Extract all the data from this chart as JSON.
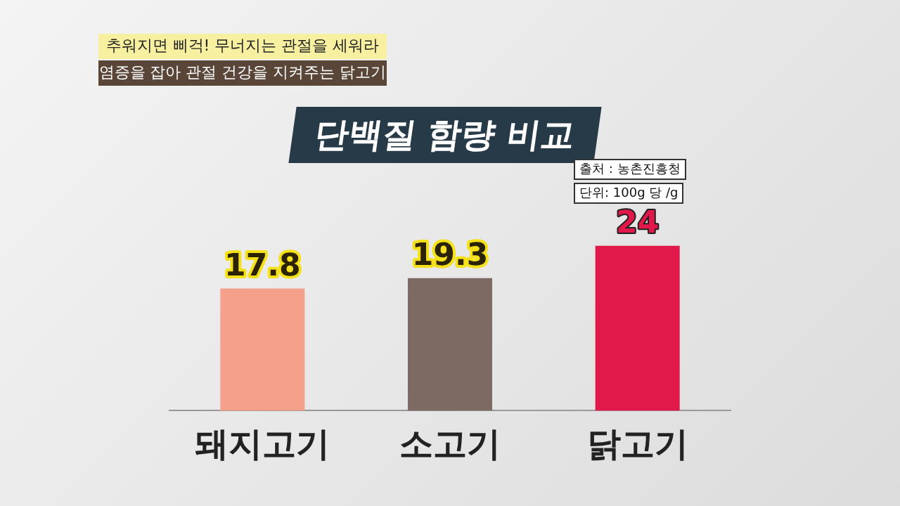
{
  "chart_data": {
    "type": "bar",
    "title": "단백질 함량 비교",
    "categories": [
      "돼지고기",
      "소고기",
      "닭고기"
    ],
    "values": [
      17.8,
      19.3,
      24
    ],
    "colors": [
      "#f4a08a",
      "#7d6a62",
      "#e0194a"
    ],
    "data_labels": true,
    "annotations": [
      "추워지면 삐걱! 무너지는 관절을 세워라",
      "염증을 잡아 관절 건강을 지켜주는 닭고기",
      "출처 : 농촌진흥청",
      "단위: 100g 당 /g"
    ]
  }
}
